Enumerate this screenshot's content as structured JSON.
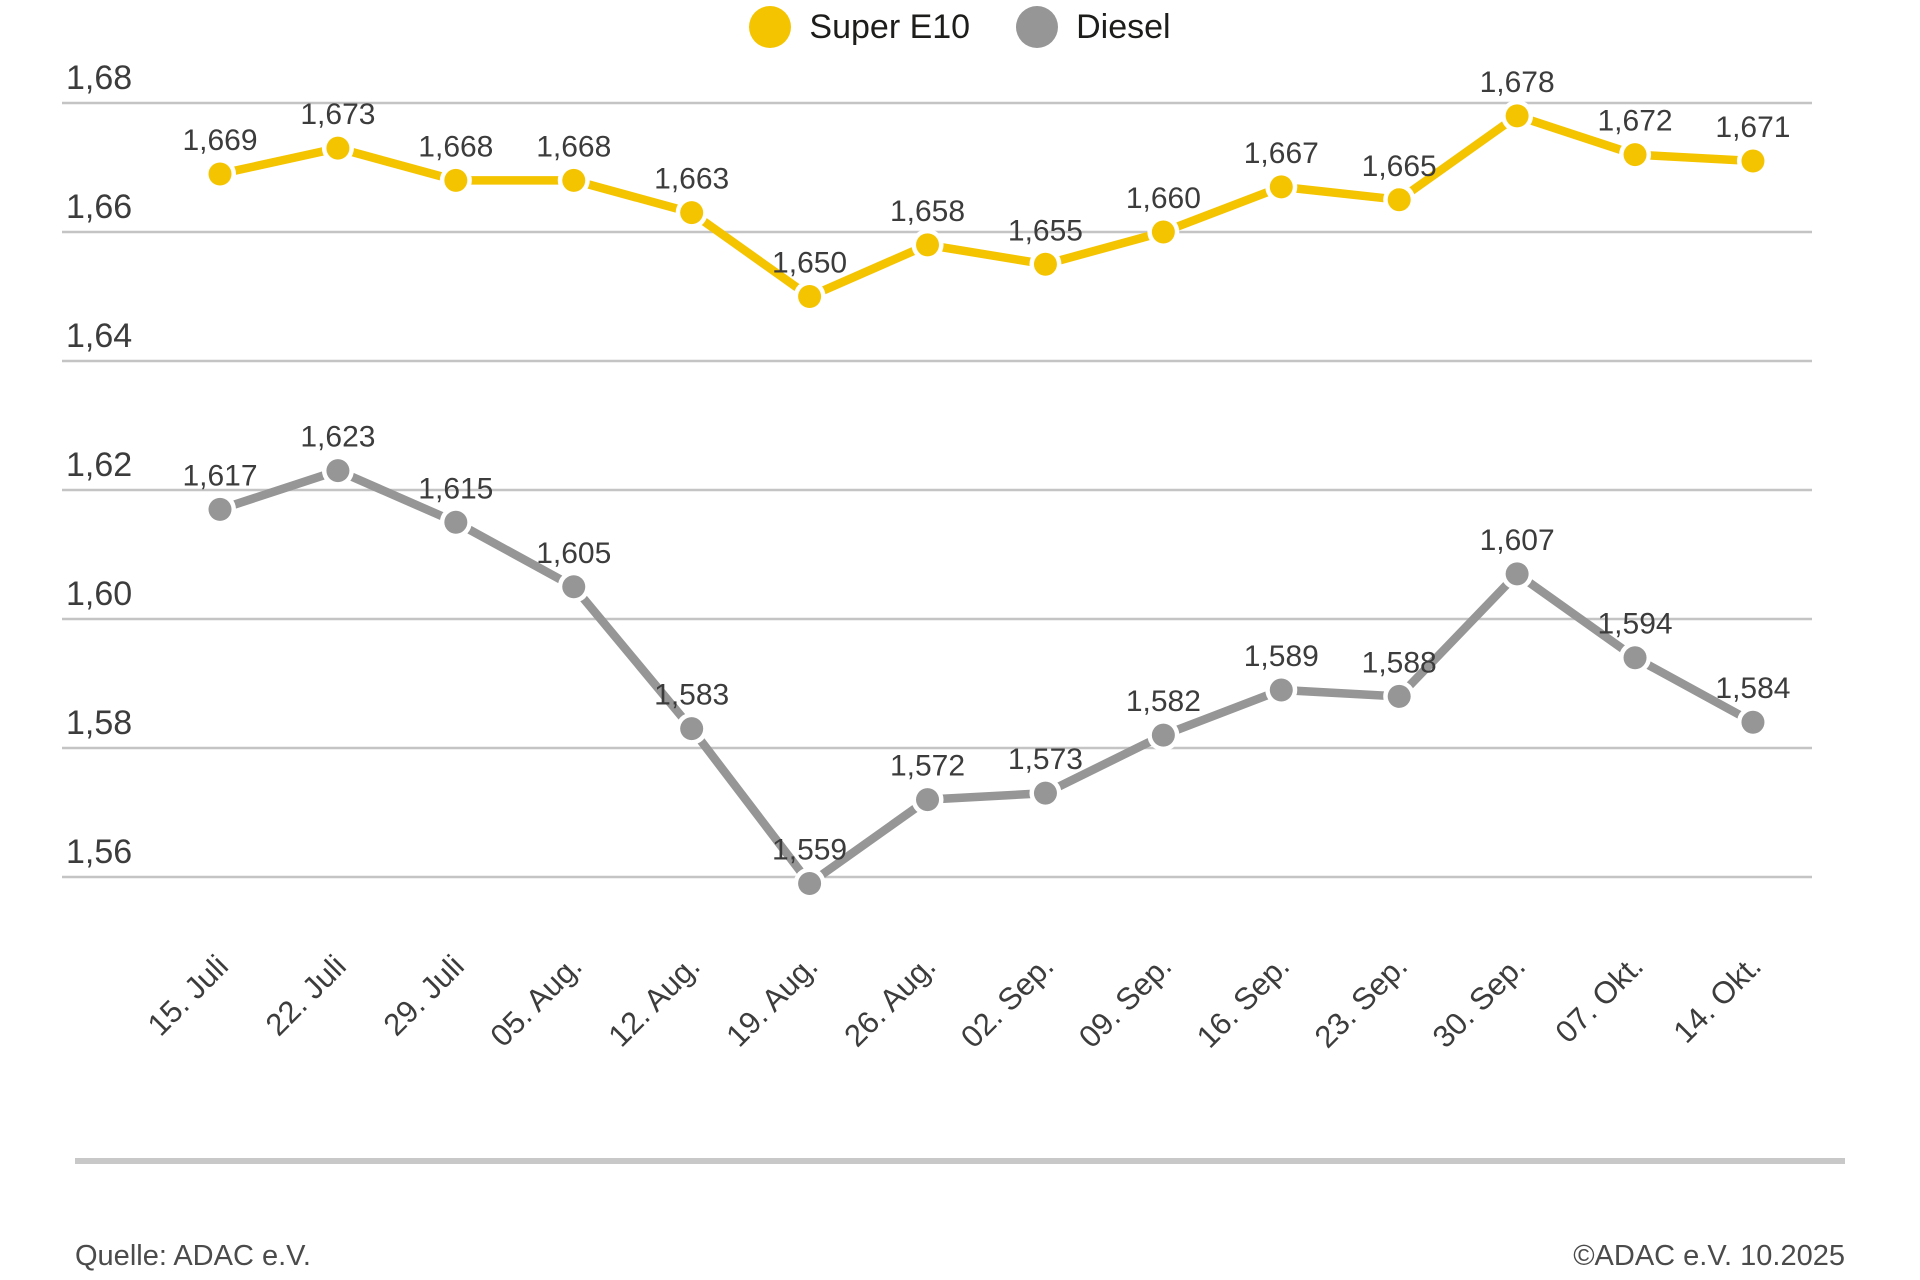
{
  "colors": {
    "super_e10": "#f5c400",
    "diesel": "#969696",
    "grid": "#c4c4c4",
    "text": "#3c3c3c",
    "separator": "#c8c8c8",
    "footer_text": "#4b4b4b"
  },
  "chart_data": {
    "type": "line",
    "categories": [
      "15. Juli",
      "22. Juli",
      "29. Juli",
      "05. Aug.",
      "12. Aug.",
      "19. Aug.",
      "26. Aug.",
      "02. Sep.",
      "09. Sep.",
      "16. Sep.",
      "23. Sep.",
      "30. Sep.",
      "07. Okt.",
      "14. Okt."
    ],
    "series": [
      {
        "id": "super-e10",
        "name": "Super E10",
        "color": "#f5c400",
        "values": [
          1.669,
          1.673,
          1.668,
          1.668,
          1.663,
          1.65,
          1.658,
          1.655,
          1.66,
          1.667,
          1.665,
          1.678,
          1.672,
          1.671
        ],
        "labels": [
          "1,669",
          "1,673",
          "1,668",
          "1,668",
          "1,663",
          "1,650",
          "1,658",
          "1,655",
          "1,660",
          "1,667",
          "1,665",
          "1,678",
          "1,672",
          "1,671"
        ]
      },
      {
        "id": "diesel",
        "name": "Diesel",
        "color": "#969696",
        "values": [
          1.617,
          1.623,
          1.615,
          1.605,
          1.583,
          1.559,
          1.572,
          1.573,
          1.582,
          1.589,
          1.588,
          1.607,
          1.594,
          1.584
        ],
        "labels": [
          "1,617",
          "1,623",
          "1,615",
          "1,605",
          "1,583",
          "1,559",
          "1,572",
          "1,573",
          "1,582",
          "1,589",
          "1,588",
          "1,607",
          "1,594",
          "1,584"
        ]
      }
    ],
    "y_ticks": [
      "1,68",
      "1,66",
      "1,64",
      "1,62",
      "1,60",
      "1,58",
      "1,56"
    ],
    "y_tick_values": [
      1.68,
      1.66,
      1.64,
      1.62,
      1.6,
      1.58,
      1.56
    ],
    "ylim": [
      1.556,
      1.688
    ],
    "grid": true,
    "legend_position": "top",
    "title": "",
    "xlabel": "",
    "ylabel": ""
  },
  "footer": {
    "source": "Quelle: ADAC e.V.",
    "copyright": "©ADAC e.V. 10.2025"
  }
}
